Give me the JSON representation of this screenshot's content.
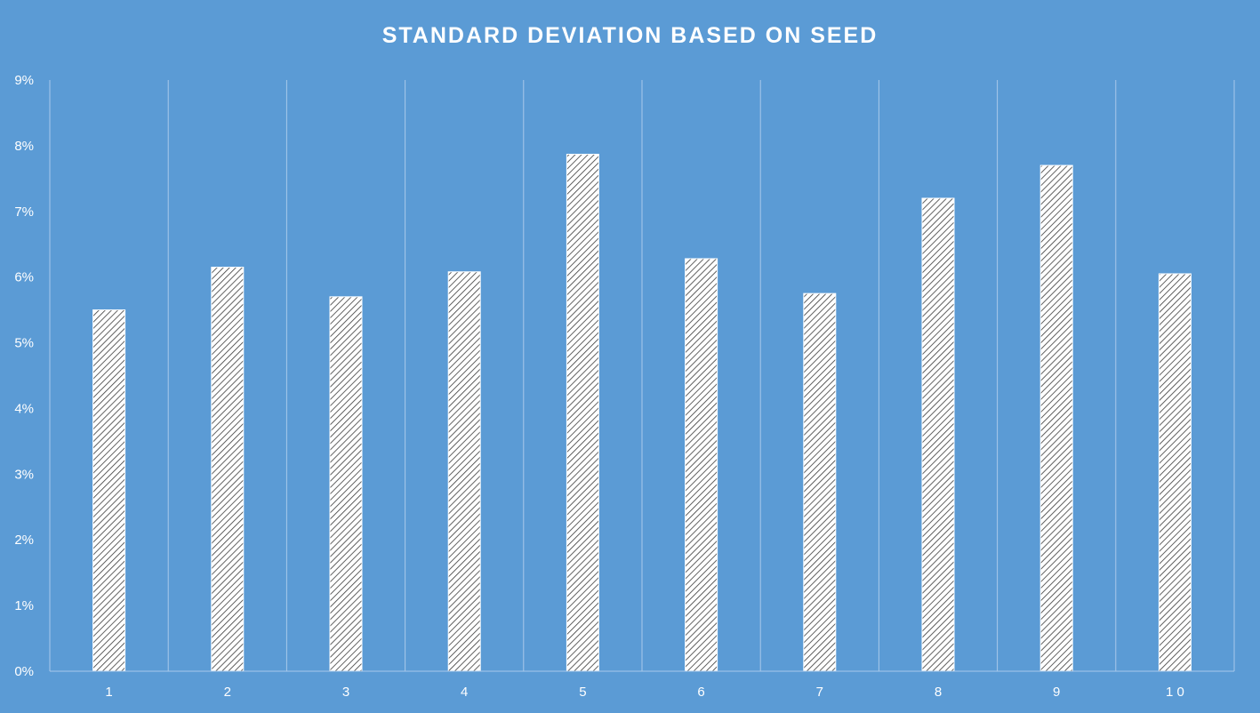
{
  "chart_data": {
    "type": "bar",
    "title": "STANDARD DEVIATION BASED ON SEED",
    "xlabel": "",
    "ylabel": "",
    "categories": [
      "1",
      "2",
      "3",
      "4",
      "5",
      "6",
      "7",
      "8",
      "9",
      "1 0"
    ],
    "values": [
      5.5,
      6.15,
      5.7,
      6.08,
      7.87,
      6.28,
      5.75,
      7.2,
      7.7,
      6.05
    ],
    "ylim": [
      0,
      9
    ],
    "y_ticks": [
      "0%",
      "1%",
      "2%",
      "3%",
      "4%",
      "5%",
      "6%",
      "7%",
      "8%",
      "9%"
    ],
    "grid": "vertical",
    "legend": "none",
    "colors": {
      "background": "#5b9bd5",
      "bar_fill": "#ffffff",
      "bar_hatch": "#3a3a3a",
      "grid": "#a9c9ea",
      "text": "#ffffff"
    }
  }
}
